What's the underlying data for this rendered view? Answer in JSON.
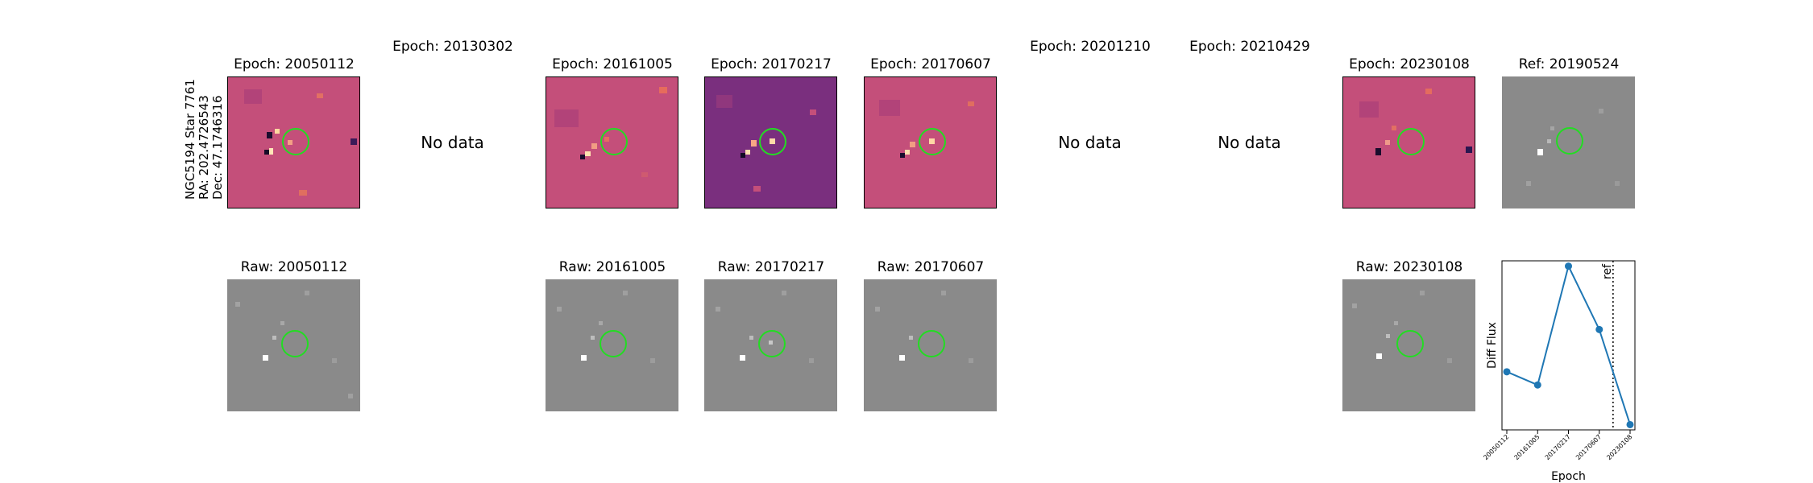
{
  "row_label": [
    "NGC5194 Star 7761",
    "RA: 202.4726543",
    "Dec: 47.1746316"
  ],
  "no_data_text": "No data",
  "diff_panels": [
    {
      "title": "Epoch: 20050112",
      "has_data": true
    },
    {
      "title": "Epoch: 20130302",
      "has_data": false
    },
    {
      "title": "Epoch: 20161005",
      "has_data": true
    },
    {
      "title": "Epoch: 20170217",
      "has_data": true
    },
    {
      "title": "Epoch: 20170607",
      "has_data": true
    },
    {
      "title": "Epoch: 20201210",
      "has_data": false
    },
    {
      "title": "Epoch: 20210429",
      "has_data": false
    },
    {
      "title": "Epoch: 20230108",
      "has_data": true
    },
    {
      "title": "Ref: 20190524",
      "has_data": true
    }
  ],
  "raw_panels": [
    {
      "title": "Raw: 20050112"
    },
    {
      "title": "Raw: 20161005"
    },
    {
      "title": "Raw: 20170217"
    },
    {
      "title": "Raw: 20170607"
    },
    {
      "title": "Raw: 20230108"
    }
  ],
  "colors": {
    "diff_bg": "#c44f7a",
    "diff_bg_dark": "#7a2f7e",
    "raw_bg": "#8a8a8a",
    "circle": "#22dd22",
    "series": "#1f77b4"
  },
  "chart_data": {
    "type": "line",
    "x": [
      "20050112",
      "20161005",
      "20170217",
      "20170607",
      "20230108"
    ],
    "values": [
      0.32,
      0.27,
      0.72,
      0.48,
      0.12
    ],
    "ylabel": "Diff Flux",
    "xlabel": "Epoch",
    "ref_label": "ref",
    "ref_line_after": "20170607",
    "ylim": [
      0.1,
      0.74
    ],
    "grid": false
  }
}
